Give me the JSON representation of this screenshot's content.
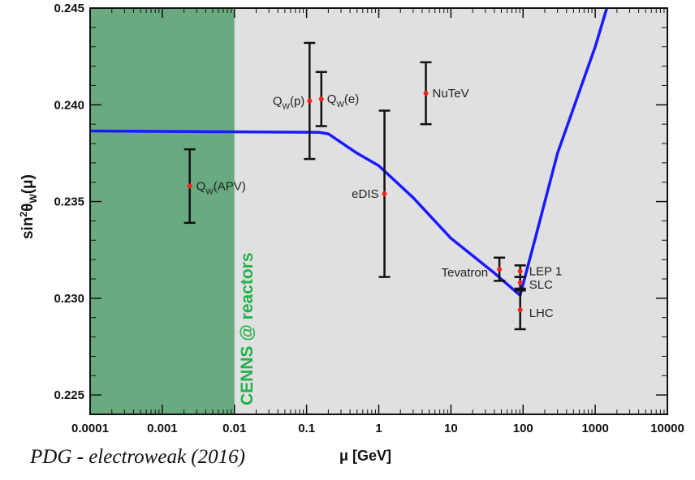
{
  "chart_data": {
    "type": "scatter",
    "xlabel": "μ [GeV]",
    "ylabel": "sin²θW(μ)",
    "xscale": "log",
    "xlim": [
      0.0001,
      10000
    ],
    "ylim": [
      0.224,
      0.245
    ],
    "x_ticks": [
      "0.0001",
      "0.001",
      "0.01",
      "0.1",
      "1",
      "10",
      "100",
      "1000",
      "10000"
    ],
    "y_ticks": [
      "0.225",
      "0.230",
      "0.235",
      "0.240",
      "0.245"
    ],
    "shaded_region": {
      "label": "CENNS @ reactors",
      "x": [
        0.0001,
        0.01
      ],
      "color": "#6aaa80"
    },
    "curve": {
      "color": "#1a1aff",
      "x": [
        0.0001,
        0.15,
        0.2,
        0.5,
        1,
        3,
        10,
        40,
        91,
        150,
        300,
        1000,
        1500
      ],
      "y": [
        0.23865,
        0.23858,
        0.2385,
        0.2375,
        0.23685,
        0.2352,
        0.2331,
        0.2313,
        0.23015,
        0.2332,
        0.2375,
        0.243,
        0.2452
      ]
    },
    "points": [
      {
        "label": "QW(APV)",
        "name": "Q",
        "sub": "W",
        "after": "(APV)",
        "x": 0.0024,
        "y": 0.2358,
        "err": 0.0019
      },
      {
        "label": "QW(p)",
        "name": "Q",
        "sub": "W",
        "after": "(p)",
        "x": 0.11,
        "y": 0.2402,
        "err": 0.003
      },
      {
        "label": "QW(e)",
        "name": "Q",
        "sub": "W",
        "after": "(e)",
        "x": 0.16,
        "y": 0.2403,
        "err": 0.0014
      },
      {
        "label": "NuTeV",
        "name": "NuTeV",
        "sub": "",
        "after": "",
        "x": 4.5,
        "y": 0.2406,
        "err": 0.0016
      },
      {
        "label": "eDIS",
        "name": "eDIS",
        "sub": "",
        "after": "",
        "x": 1.2,
        "y": 0.2354,
        "err": 0.0043
      },
      {
        "label": "Tevatron",
        "name": "Tevatron",
        "sub": "",
        "after": "",
        "x": 47,
        "y": 0.2315,
        "err": 0.0006
      },
      {
        "label": "LEP 1",
        "name": "LEP 1",
        "sub": "",
        "after": "",
        "x": 91.2,
        "y": 0.2314,
        "err": 0.0003
      },
      {
        "label": "SLC",
        "name": "SLC",
        "sub": "",
        "after": "",
        "x": 91.2,
        "y": 0.2308,
        "err": 0.0003
      },
      {
        "label": "LHC",
        "name": "LHC",
        "sub": "",
        "after": "",
        "x": 91.2,
        "y": 0.2294,
        "err": 0.001
      }
    ],
    "colors": {
      "plot_bg": "#e0e0e0",
      "error_bar": "#111111",
      "marker": "#ff2020",
      "curve": "#1a1aff",
      "band_text": "#22b14c"
    }
  },
  "caption": "PDG - electroweak (2016)",
  "xlabel_text": "μ [GeV]"
}
